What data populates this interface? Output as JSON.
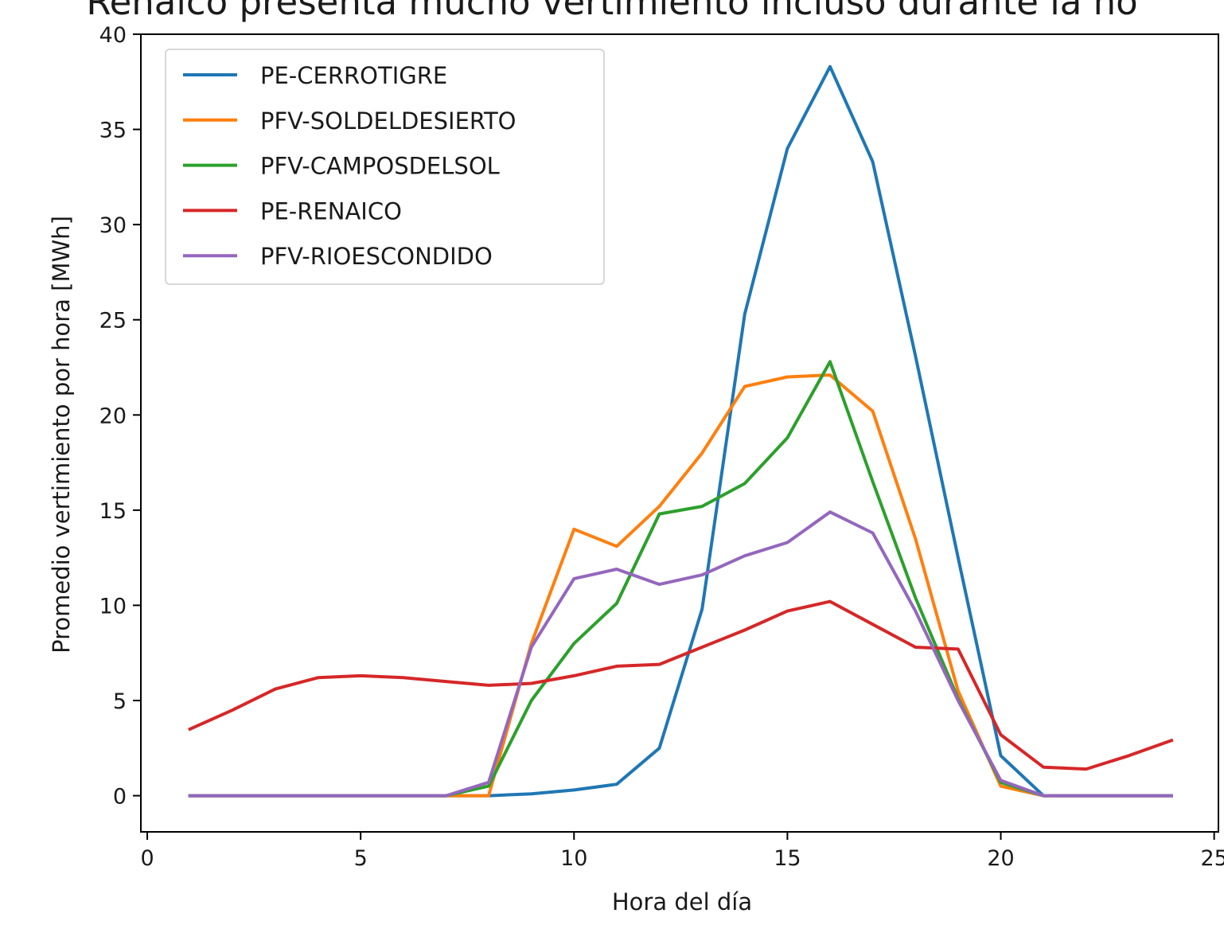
{
  "chart_data": {
    "type": "line",
    "title": "Renaico presenta mucho vertimiento incluso durante la no",
    "xlabel": "Hora del día",
    "ylabel": "Promedio vertimiento por hora [MWh]",
    "xlim": [
      -0.15,
      25.1
    ],
    "ylim": [
      -1.9,
      40
    ],
    "xticks": [
      0,
      5,
      10,
      15,
      20,
      25
    ],
    "yticks": [
      0,
      5,
      10,
      15,
      20,
      25,
      30,
      35,
      40
    ],
    "grid": false,
    "legend_position": "top-left",
    "x": [
      1,
      2,
      3,
      4,
      5,
      6,
      7,
      8,
      9,
      10,
      11,
      12,
      13,
      14,
      15,
      16,
      17,
      18,
      19,
      20,
      21,
      22,
      23,
      24
    ],
    "series": [
      {
        "name": "PE-CERROTIGRE",
        "color": "#1f77b4",
        "values": [
          0,
          0,
          0,
          0,
          0,
          0,
          0,
          0,
          0.1,
          0.3,
          0.6,
          2.5,
          9.8,
          25.3,
          34,
          38.3,
          33.3,
          23.1,
          12.5,
          2.1,
          0,
          0,
          0,
          0
        ]
      },
      {
        "name": "PFV-SOLDELDESIERTO",
        "color": "#ff7f0e",
        "values": [
          0,
          0,
          0,
          0,
          0,
          0,
          0,
          0,
          8,
          14,
          13.1,
          15.2,
          18,
          21.5,
          22,
          22.1,
          20.2,
          13.5,
          5.5,
          0.5,
          0,
          0,
          0,
          0
        ]
      },
      {
        "name": "PFV-CAMPOSDELSOL",
        "color": "#2ca02c",
        "values": [
          0,
          0,
          0,
          0,
          0,
          0,
          0,
          0.5,
          5,
          8,
          10.1,
          14.8,
          15.2,
          16.4,
          18.8,
          22.8,
          16.5,
          10.4,
          5.1,
          0.7,
          0,
          0,
          0,
          0
        ]
      },
      {
        "name": "PE-RENAICO",
        "color": "#d62728",
        "values": [
          3.5,
          4.5,
          5.6,
          6.2,
          6.3,
          6.2,
          6,
          5.8,
          5.9,
          6.3,
          6.8,
          6.9,
          7.8,
          8.7,
          9.7,
          10.2,
          9,
          7.8,
          7.7,
          3.2,
          1.5,
          1.4,
          2.1,
          2.9
        ]
      },
      {
        "name": "PFV-RIOESCONDIDO",
        "color": "#9467bd",
        "values": [
          0,
          0,
          0,
          0,
          0,
          0,
          0,
          0.7,
          7.8,
          11.4,
          11.9,
          11.1,
          11.6,
          12.6,
          13.3,
          14.9,
          13.8,
          9.7,
          5,
          0.8,
          0,
          0,
          0,
          0
        ]
      }
    ]
  }
}
